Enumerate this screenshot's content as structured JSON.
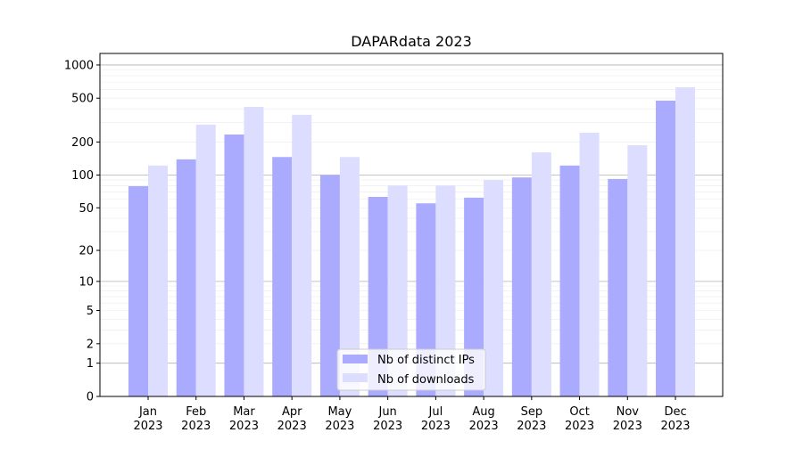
{
  "chart_data": {
    "type": "bar",
    "title": "DAPARdata 2023",
    "xlabel": "",
    "ylabel": "",
    "yscale": "log10(1+y)",
    "ylim": [
      0,
      1200
    ],
    "grid": true,
    "legend_position": "bottom-center",
    "categories": [
      "Jan\n2023",
      "Feb\n2023",
      "Mar\n2023",
      "Apr\n2023",
      "May\n2023",
      "Jun\n2023",
      "Jul\n2023",
      "Aug\n2023",
      "Sep\n2023",
      "Oct\n2023",
      "Nov\n2023",
      "Dec\n2023"
    ],
    "yticks": [
      0,
      1,
      2,
      5,
      10,
      20,
      50,
      100,
      200,
      500,
      1000
    ],
    "series": [
      {
        "name": "Nb of distinct IPs",
        "color": "#aaaaff",
        "values": [
          79,
          139,
          234,
          146,
          100,
          63,
          55,
          62,
          95,
          122,
          92,
          475
        ]
      },
      {
        "name": "Nb of downloads",
        "color": "#ddddff",
        "values": [
          122,
          288,
          417,
          353,
          146,
          80,
          80,
          90,
          161,
          243,
          187,
          628
        ]
      }
    ]
  }
}
